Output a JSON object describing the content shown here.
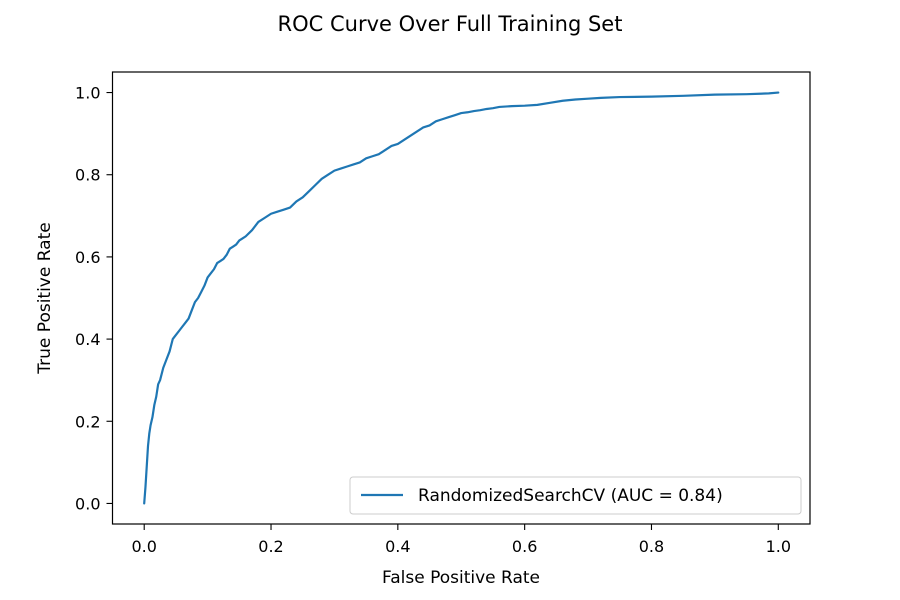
{
  "chart_data": {
    "type": "line",
    "title": "ROC Curve Over Full Training Set",
    "xlabel": "False Positive Rate",
    "ylabel": "True Positive Rate",
    "xlim": [
      -0.05,
      1.05
    ],
    "ylim": [
      -0.05,
      1.05
    ],
    "xticks": [
      0.0,
      0.2,
      0.4,
      0.6,
      0.8,
      1.0
    ],
    "xtick_labels": [
      "0.0",
      "0.2",
      "0.4",
      "0.6",
      "0.8",
      "1.0"
    ],
    "yticks": [
      0.0,
      0.2,
      0.4,
      0.6,
      0.8,
      1.0
    ],
    "ytick_labels": [
      "0.0",
      "0.2",
      "0.4",
      "0.6",
      "0.8",
      "1.0"
    ],
    "grid": false,
    "legend_position": "lower-right",
    "series": [
      {
        "name": "RandomizedSearchCV (AUC = 0.84)",
        "color": "#1f77b4",
        "x": [
          0.0,
          0.002,
          0.004,
          0.006,
          0.008,
          0.01,
          0.013,
          0.016,
          0.019,
          0.022,
          0.025,
          0.03,
          0.035,
          0.04,
          0.045,
          0.05,
          0.055,
          0.06,
          0.065,
          0.07,
          0.075,
          0.08,
          0.085,
          0.09,
          0.095,
          0.1,
          0.105,
          0.11,
          0.115,
          0.12,
          0.125,
          0.13,
          0.135,
          0.14,
          0.145,
          0.15,
          0.155,
          0.16,
          0.17,
          0.18,
          0.19,
          0.2,
          0.21,
          0.22,
          0.23,
          0.24,
          0.25,
          0.26,
          0.27,
          0.28,
          0.29,
          0.3,
          0.31,
          0.32,
          0.33,
          0.34,
          0.35,
          0.36,
          0.37,
          0.38,
          0.39,
          0.4,
          0.41,
          0.42,
          0.43,
          0.44,
          0.45,
          0.46,
          0.47,
          0.48,
          0.49,
          0.5,
          0.51,
          0.52,
          0.53,
          0.54,
          0.55,
          0.56,
          0.58,
          0.6,
          0.62,
          0.64,
          0.66,
          0.68,
          0.7,
          0.72,
          0.75,
          0.8,
          0.85,
          0.9,
          0.95,
          0.97,
          0.985,
          1.0
        ],
        "y": [
          0.0,
          0.04,
          0.09,
          0.14,
          0.17,
          0.19,
          0.21,
          0.24,
          0.26,
          0.29,
          0.3,
          0.33,
          0.35,
          0.37,
          0.4,
          0.41,
          0.42,
          0.43,
          0.44,
          0.45,
          0.47,
          0.49,
          0.5,
          0.515,
          0.53,
          0.55,
          0.56,
          0.57,
          0.585,
          0.59,
          0.595,
          0.605,
          0.62,
          0.625,
          0.63,
          0.64,
          0.645,
          0.65,
          0.665,
          0.685,
          0.695,
          0.705,
          0.71,
          0.715,
          0.72,
          0.735,
          0.745,
          0.76,
          0.775,
          0.79,
          0.8,
          0.81,
          0.815,
          0.82,
          0.825,
          0.83,
          0.84,
          0.845,
          0.85,
          0.86,
          0.87,
          0.875,
          0.885,
          0.895,
          0.905,
          0.915,
          0.92,
          0.93,
          0.935,
          0.94,
          0.945,
          0.95,
          0.952,
          0.955,
          0.957,
          0.96,
          0.962,
          0.965,
          0.967,
          0.968,
          0.97,
          0.975,
          0.98,
          0.983,
          0.985,
          0.987,
          0.989,
          0.99,
          0.992,
          0.995,
          0.996,
          0.997,
          0.998,
          1.0
        ]
      }
    ]
  }
}
